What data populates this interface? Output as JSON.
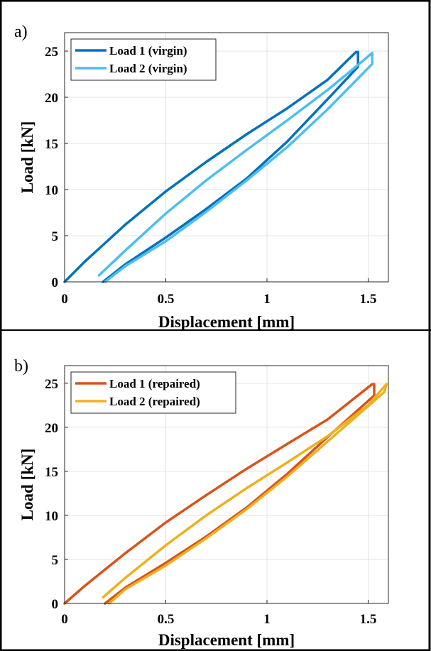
{
  "chart_data": [
    {
      "type": "line",
      "panel_label": "a)",
      "xlabel": "Displacement [mm]",
      "ylabel": "Load [kN]",
      "xlim": [
        0,
        1.6
      ],
      "ylim": [
        0,
        27
      ],
      "xticks": [
        0,
        0.5,
        1,
        1.5
      ],
      "xtick_labels": [
        "0",
        "0.5",
        "1",
        "1.5"
      ],
      "yticks": [
        0,
        5,
        10,
        15,
        20,
        25
      ],
      "ytick_labels": [
        "0",
        "5",
        "10",
        "15",
        "20",
        "25"
      ],
      "grid": true,
      "legend_position": "top-left",
      "series": [
        {
          "name": "Load 1 (virgin)",
          "color": "#0072BD",
          "x": [
            0.0,
            0.1,
            0.3,
            0.5,
            0.7,
            0.9,
            1.1,
            1.3,
            1.44,
            1.45,
            1.45,
            1.3,
            1.1,
            0.9,
            0.7,
            0.5,
            0.3,
            0.19
          ],
          "y": [
            0.0,
            2.2,
            6.2,
            9.8,
            13.0,
            16.0,
            18.8,
            21.9,
            24.9,
            24.9,
            23.3,
            19.8,
            15.2,
            11.2,
            7.9,
            4.8,
            1.9,
            0.0
          ]
        },
        {
          "name": "Load 2 (virgin)",
          "color": "#4DBEEE",
          "x": [
            0.17,
            0.3,
            0.5,
            0.7,
            0.9,
            1.1,
            1.3,
            1.45,
            1.52,
            1.52,
            1.3,
            1.1,
            0.9,
            0.7,
            0.5,
            0.3,
            0.2
          ],
          "y": [
            0.7,
            3.4,
            7.4,
            11.0,
            14.3,
            17.5,
            20.8,
            23.5,
            24.8,
            23.6,
            18.7,
            14.6,
            11.0,
            7.6,
            4.4,
            1.7,
            0.0
          ]
        }
      ]
    },
    {
      "type": "line",
      "panel_label": "b)",
      "xlabel": "Displacement [mm]",
      "ylabel": "Load [kN]",
      "xlim": [
        0,
        1.6
      ],
      "ylim": [
        0,
        27
      ],
      "xticks": [
        0,
        0.5,
        1,
        1.5
      ],
      "xtick_labels": [
        "0",
        "0.5",
        "1",
        "1.5"
      ],
      "yticks": [
        0,
        5,
        10,
        15,
        20,
        25
      ],
      "ytick_labels": [
        "0",
        "5",
        "10",
        "15",
        "20",
        "25"
      ],
      "grid": true,
      "legend_position": "top-left",
      "series": [
        {
          "name": "Load 1 (repaired)",
          "color": "#D95319",
          "x": [
            0.0,
            0.1,
            0.3,
            0.5,
            0.7,
            0.9,
            1.1,
            1.3,
            1.52,
            1.53,
            1.53,
            1.3,
            1.1,
            0.9,
            0.7,
            0.5,
            0.3,
            0.2
          ],
          "y": [
            0.0,
            2.0,
            5.7,
            9.2,
            12.3,
            15.3,
            18.1,
            20.9,
            24.9,
            24.9,
            23.6,
            18.9,
            14.7,
            10.9,
            7.6,
            4.6,
            1.8,
            0.0
          ]
        },
        {
          "name": "Load 2 (repaired)",
          "color": "#EDB120",
          "x": [
            0.19,
            0.3,
            0.5,
            0.7,
            0.9,
            1.1,
            1.3,
            1.5,
            1.59,
            1.58,
            1.3,
            1.1,
            0.9,
            0.7,
            0.5,
            0.3,
            0.22
          ],
          "y": [
            0.7,
            2.9,
            6.6,
            10.0,
            13.1,
            16.0,
            19.0,
            22.5,
            24.9,
            24.0,
            18.4,
            14.4,
            10.7,
            7.4,
            4.3,
            1.6,
            0.0
          ]
        }
      ]
    }
  ]
}
